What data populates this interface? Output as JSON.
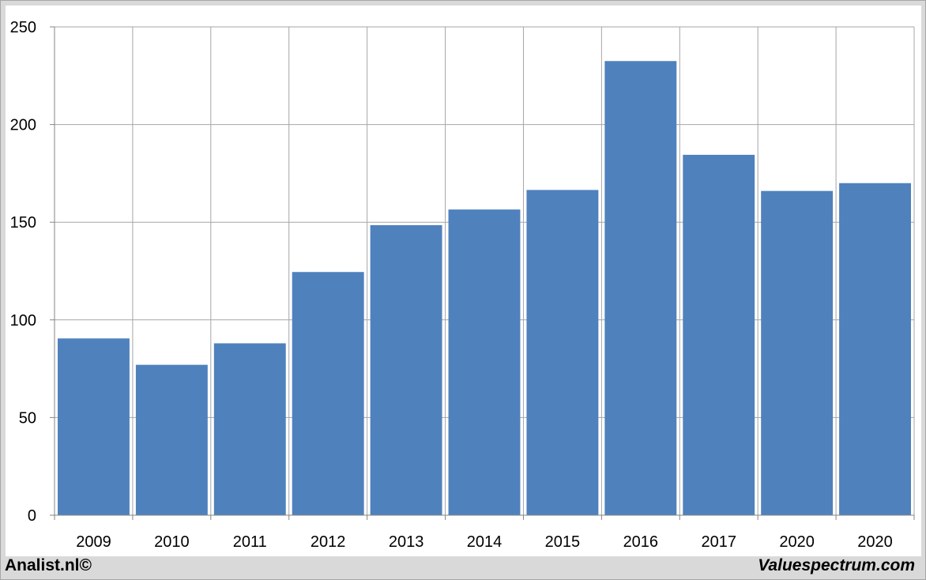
{
  "chart_data": {
    "type": "bar",
    "categories": [
      "2009",
      "2010",
      "2011",
      "2012",
      "2013",
      "2014",
      "2015",
      "2016",
      "2017",
      "2020",
      "2020"
    ],
    "values": [
      90.5,
      77,
      88,
      124.5,
      148.5,
      156.5,
      166.5,
      232.5,
      184.5,
      166,
      170
    ],
    "title": "",
    "xlabel": "",
    "ylabel": "",
    "ylim": [
      0,
      250
    ],
    "yticks": [
      0,
      50,
      100,
      150,
      200,
      250
    ],
    "grid": true,
    "bar_color": "#4f81bd"
  },
  "footer": {
    "left": "Analist.nl©",
    "right": "Valuespectrum.com"
  }
}
